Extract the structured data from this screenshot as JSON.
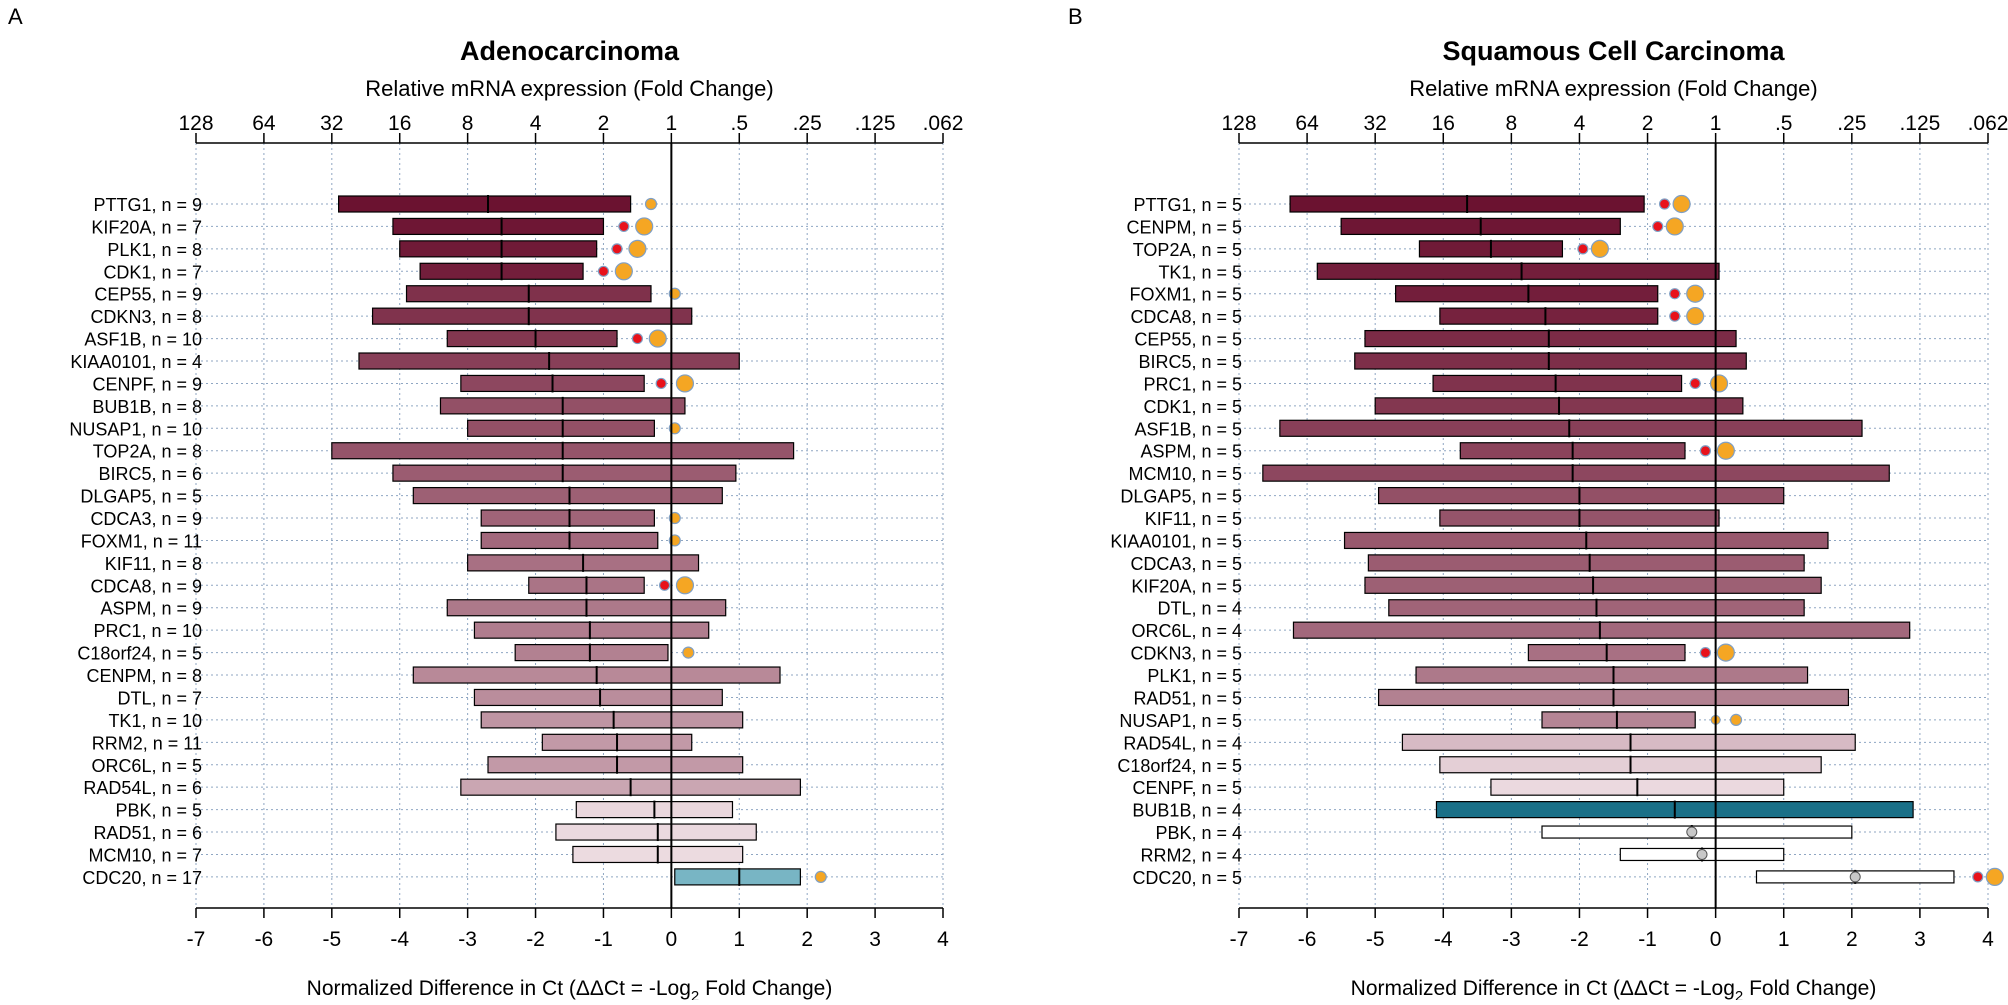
{
  "colors": {
    "bar_dark": "#6b1230",
    "bar_light": "#efdfe4",
    "teal_dark": "#1a7088",
    "teal_light": "#78b5c4",
    "dot_red": "#e8121b",
    "dot_orange": "#f5a623",
    "dot_stroke": "#7f9fc4",
    "grid": "#8fa6c2"
  },
  "chart_data": [
    {
      "type": "bar",
      "panel_label": "A",
      "title": "Adenocarcinoma",
      "subtitle": "Relative mRNA expression (Fold Change)",
      "xlabel_main": "Normalized Difference in Ct (ΔΔCt = -Log",
      "xlabel_sub": "2",
      "xlabel_tail": " Fold Change)",
      "xlim": [
        -7,
        4
      ],
      "xticks": [
        "-7",
        "-6",
        "-5",
        "-4",
        "-3",
        "-2",
        "-1",
        "0",
        "1",
        "2",
        "3",
        "4"
      ],
      "fold_ticks": [
        "128",
        "64",
        "32",
        "16",
        "8",
        "4",
        "2",
        "1",
        ".5",
        ".25",
        ".125",
        ".062"
      ],
      "rows": [
        {
          "label": "PTTG1, n =  9",
          "lo": -4.9,
          "hi": -0.6,
          "med": -2.7,
          "tone": 0.0,
          "red": null,
          "orange": -0.3
        },
        {
          "label": "KIF20A, n =  7",
          "lo": -4.1,
          "hi": -1.0,
          "med": -2.5,
          "tone": 0.02,
          "red": -0.7,
          "orange": -0.4
        },
        {
          "label": "PLK1, n =  8",
          "lo": -4.0,
          "hi": -1.1,
          "med": -2.5,
          "tone": 0.04,
          "red": -0.8,
          "orange": -0.5
        },
        {
          "label": "CDK1, n =  7",
          "lo": -3.7,
          "hi": -1.3,
          "med": -2.5,
          "tone": 0.06,
          "red": -1.0,
          "orange": -0.7
        },
        {
          "label": "CEP55, n =  9",
          "lo": -3.9,
          "hi": -0.3,
          "med": -2.1,
          "tone": 0.15,
          "red": null,
          "orange": 0.05
        },
        {
          "label": "CDKN3, n =  8",
          "lo": -4.4,
          "hi": 0.3,
          "med": -2.1,
          "tone": 0.16,
          "red": null,
          "orange": null
        },
        {
          "label": "ASF1B, n = 10",
          "lo": -3.3,
          "hi": -0.8,
          "med": -2.0,
          "tone": 0.18,
          "red": -0.5,
          "orange": -0.2
        },
        {
          "label": "KIAA0101, n =  4",
          "lo": -4.6,
          "hi": 1.0,
          "med": -1.8,
          "tone": 0.22,
          "red": null,
          "orange": null
        },
        {
          "label": "CENPF, n =  9",
          "lo": -3.1,
          "hi": -0.4,
          "med": -1.75,
          "tone": 0.26,
          "red": -0.15,
          "orange": 0.2
        },
        {
          "label": "BUB1B, n =  8",
          "lo": -3.4,
          "hi": 0.2,
          "med": -1.6,
          "tone": 0.3,
          "red": null,
          "orange": null
        },
        {
          "label": "NUSAP1, n = 10",
          "lo": -3.0,
          "hi": -0.25,
          "med": -1.6,
          "tone": 0.3,
          "red": null,
          "orange": 0.05
        },
        {
          "label": "TOP2A, n =  8",
          "lo": -5.0,
          "hi": 1.8,
          "med": -1.6,
          "tone": 0.32,
          "red": null,
          "orange": null
        },
        {
          "label": "BIRC5, n =  6",
          "lo": -4.1,
          "hi": 0.95,
          "med": -1.6,
          "tone": 0.36,
          "red": null,
          "orange": null
        },
        {
          "label": "DLGAP5, n =  5",
          "lo": -3.8,
          "hi": 0.75,
          "med": -1.5,
          "tone": 0.38,
          "red": null,
          "orange": null
        },
        {
          "label": "CDCA3, n =  9",
          "lo": -2.8,
          "hi": -0.25,
          "med": -1.5,
          "tone": 0.4,
          "red": null,
          "orange": 0.05
        },
        {
          "label": "FOXM1, n = 11",
          "lo": -2.8,
          "hi": -0.2,
          "med": -1.5,
          "tone": 0.42,
          "red": null,
          "orange": 0.05
        },
        {
          "label": "KIF11, n =  8",
          "lo": -3.0,
          "hi": 0.4,
          "med": -1.3,
          "tone": 0.46,
          "red": null,
          "orange": null
        },
        {
          "label": "CDCA8, n =  9",
          "lo": -2.1,
          "hi": -0.4,
          "med": -1.25,
          "tone": 0.48,
          "red": -0.1,
          "orange": 0.2
        },
        {
          "label": "ASPM, n =  9",
          "lo": -3.3,
          "hi": 0.8,
          "med": -1.25,
          "tone": 0.5,
          "red": null,
          "orange": null
        },
        {
          "label": "PRC1, n = 10",
          "lo": -2.9,
          "hi": 0.55,
          "med": -1.2,
          "tone": 0.52,
          "red": null,
          "orange": null
        },
        {
          "label": "C18orf24, n =  5",
          "lo": -2.3,
          "hi": -0.05,
          "med": -1.2,
          "tone": 0.54,
          "red": null,
          "orange": 0.25
        },
        {
          "label": "CENPM, n =  8",
          "lo": -3.8,
          "hi": 1.6,
          "med": -1.1,
          "tone": 0.58,
          "red": null,
          "orange": null
        },
        {
          "label": "DTL, n =  7",
          "lo": -2.9,
          "hi": 0.75,
          "med": -1.05,
          "tone": 0.6,
          "red": null,
          "orange": null
        },
        {
          "label": "TK1, n = 10",
          "lo": -2.8,
          "hi": 1.05,
          "med": -0.85,
          "tone": 0.64,
          "red": null,
          "orange": null
        },
        {
          "label": "RRM2, n = 11",
          "lo": -1.9,
          "hi": 0.3,
          "med": -0.8,
          "tone": 0.66,
          "red": null,
          "orange": null
        },
        {
          "label": "ORC6L, n =  5",
          "lo": -2.7,
          "hi": 1.05,
          "med": -0.8,
          "tone": 0.66,
          "red": null,
          "orange": null
        },
        {
          "label": "RAD54L, n =  6",
          "lo": -3.1,
          "hi": 1.9,
          "med": -0.6,
          "tone": 0.72,
          "red": null,
          "orange": null
        },
        {
          "label": "PBK, n =  5",
          "lo": -1.4,
          "hi": 0.9,
          "med": -0.25,
          "tone": 0.96,
          "red": null,
          "orange": null
        },
        {
          "label": "RAD51, n =  6",
          "lo": -1.7,
          "hi": 1.25,
          "med": -0.2,
          "tone": 0.97,
          "red": null,
          "orange": null
        },
        {
          "label": "MCM10, n =  7",
          "lo": -1.45,
          "hi": 1.05,
          "med": -0.2,
          "tone": 0.98,
          "red": null,
          "orange": null
        },
        {
          "label": "CDC20, n = 17",
          "lo": 0.05,
          "hi": 1.9,
          "med": 1.0,
          "tone": "teal_light",
          "red": null,
          "orange": 2.2
        }
      ]
    },
    {
      "type": "bar",
      "panel_label": "B",
      "title": "Squamous Cell Carcinoma",
      "subtitle": "Relative mRNA expression (Fold Change)",
      "xlabel_main": "Normalized Difference in Ct (ΔΔCt = -Log",
      "xlabel_sub": "2",
      "xlabel_tail": " Fold Change)",
      "xlim": [
        -7,
        4
      ],
      "xticks": [
        "-7",
        "-6",
        "-5",
        "-4",
        "-3",
        "-2",
        "-1",
        "0",
        "1",
        "2",
        "3",
        "4"
      ],
      "fold_ticks": [
        "128",
        "64",
        "32",
        "16",
        "8",
        "4",
        "2",
        "1",
        ".5",
        ".25",
        ".125",
        ".062"
      ],
      "rows": [
        {
          "label": "PTTG1, n =  5",
          "lo": -6.25,
          "hi": -1.05,
          "med": -3.65,
          "tone": 0.0,
          "red": -0.75,
          "orange": -0.5
        },
        {
          "label": "CENPM, n =  5",
          "lo": -5.5,
          "hi": -1.4,
          "med": -3.45,
          "tone": 0.02,
          "red": -0.85,
          "orange": -0.6
        },
        {
          "label": "TOP2A, n =  5",
          "lo": -4.35,
          "hi": -2.25,
          "med": -3.3,
          "tone": 0.04,
          "red": -1.95,
          "orange": -1.7
        },
        {
          "label": "TK1, n =  5",
          "lo": -5.85,
          "hi": 0.05,
          "med": -2.85,
          "tone": 0.06,
          "red": null,
          "orange": null
        },
        {
          "label": "FOXM1, n =  5",
          "lo": -4.7,
          "hi": -0.85,
          "med": -2.75,
          "tone": 0.06,
          "red": -0.6,
          "orange": -0.3
        },
        {
          "label": "CDCA8, n =  5",
          "lo": -4.05,
          "hi": -0.85,
          "med": -2.5,
          "tone": 0.08,
          "red": -0.6,
          "orange": -0.3
        },
        {
          "label": "CEP55, n =  5",
          "lo": -5.15,
          "hi": 0.3,
          "med": -2.45,
          "tone": 0.12,
          "red": null,
          "orange": null
        },
        {
          "label": "BIRC5, n =  5",
          "lo": -5.3,
          "hi": 0.45,
          "med": -2.45,
          "tone": 0.14,
          "red": null,
          "orange": null
        },
        {
          "label": "PRC1, n =  5",
          "lo": -4.15,
          "hi": -0.5,
          "med": -2.35,
          "tone": 0.16,
          "red": -0.3,
          "orange": 0.05
        },
        {
          "label": "CDK1, n =  5",
          "lo": -5.0,
          "hi": 0.4,
          "med": -2.3,
          "tone": 0.18,
          "red": null,
          "orange": null
        },
        {
          "label": "ASF1B, n =  5",
          "lo": -6.4,
          "hi": 2.15,
          "med": -2.15,
          "tone": 0.22,
          "red": null,
          "orange": null
        },
        {
          "label": "ASPM, n =  5",
          "lo": -3.75,
          "hi": -0.45,
          "med": -2.1,
          "tone": 0.24,
          "red": -0.15,
          "orange": 0.15
        },
        {
          "label": "MCM10, n =  5",
          "lo": -6.65,
          "hi": 2.55,
          "med": -2.1,
          "tone": 0.26,
          "red": null,
          "orange": null
        },
        {
          "label": "DLGAP5, n =  5",
          "lo": -4.95,
          "hi": 1.0,
          "med": -2.0,
          "tone": 0.3,
          "red": null,
          "orange": null
        },
        {
          "label": "KIF11, n =  5",
          "lo": -4.05,
          "hi": 0.05,
          "med": -2.0,
          "tone": 0.32,
          "red": null,
          "orange": null
        },
        {
          "label": "KIAA0101, n =  5",
          "lo": -5.45,
          "hi": 1.65,
          "med": -1.9,
          "tone": 0.34,
          "red": null,
          "orange": null
        },
        {
          "label": "CDCA3, n =  5",
          "lo": -5.1,
          "hi": 1.3,
          "med": -1.85,
          "tone": 0.36,
          "red": null,
          "orange": null
        },
        {
          "label": "KIF20A, n =  5",
          "lo": -5.15,
          "hi": 1.55,
          "med": -1.8,
          "tone": 0.38,
          "red": null,
          "orange": null
        },
        {
          "label": "DTL, n =  4",
          "lo": -4.8,
          "hi": 1.3,
          "med": -1.75,
          "tone": 0.4,
          "red": null,
          "orange": null
        },
        {
          "label": "ORC6L, n =  4",
          "lo": -6.2,
          "hi": 2.85,
          "med": -1.7,
          "tone": 0.42,
          "red": null,
          "orange": null
        },
        {
          "label": "CDKN3, n =  5",
          "lo": -2.75,
          "hi": -0.45,
          "med": -1.6,
          "tone": 0.46,
          "red": -0.15,
          "orange": 0.15
        },
        {
          "label": "PLK1, n =  5",
          "lo": -4.4,
          "hi": 1.35,
          "med": -1.5,
          "tone": 0.5,
          "red": null,
          "orange": null
        },
        {
          "label": "RAD51, n =  5",
          "lo": -4.95,
          "hi": 1.95,
          "med": -1.5,
          "tone": 0.54,
          "red": null,
          "orange": null
        },
        {
          "label": "NUSAP1, n =  5",
          "lo": -2.55,
          "hi": -0.3,
          "med": -1.45,
          "tone": 0.56,
          "red": null,
          "orange": 0.3,
          "tiny": -0.0
        },
        {
          "label": "RAD54L, n =  4",
          "lo": -4.6,
          "hi": 2.05,
          "med": -1.25,
          "tone": 0.82,
          "red": null,
          "orange": null
        },
        {
          "label": "C18orf24, n =  5",
          "lo": -4.05,
          "hi": 1.55,
          "med": -1.25,
          "tone": 0.92,
          "red": null,
          "orange": null
        },
        {
          "label": "CENPF, n =  5",
          "lo": -3.3,
          "hi": 1.0,
          "med": -1.15,
          "tone": 0.97,
          "red": null,
          "orange": null
        },
        {
          "label": "BUB1B, n =  4",
          "lo": -4.1,
          "hi": 2.9,
          "med": -0.6,
          "tone": "teal_dark",
          "red": null,
          "orange": null
        },
        {
          "label": "PBK, n =  4",
          "lo": -2.55,
          "hi": 2.0,
          "med": -0.35,
          "tone": "white",
          "red": null,
          "orange": null,
          "gray": -0.35
        },
        {
          "label": "RRM2, n =  4",
          "lo": -1.4,
          "hi": 1.0,
          "med": -0.2,
          "tone": "white",
          "red": null,
          "orange": null,
          "gray": -0.2
        },
        {
          "label": "CDC20, n =  5",
          "lo": 0.6,
          "hi": 3.5,
          "med": 2.05,
          "tone": "white",
          "red": 3.85,
          "orange": 4.1,
          "gray": 2.05
        }
      ]
    }
  ]
}
